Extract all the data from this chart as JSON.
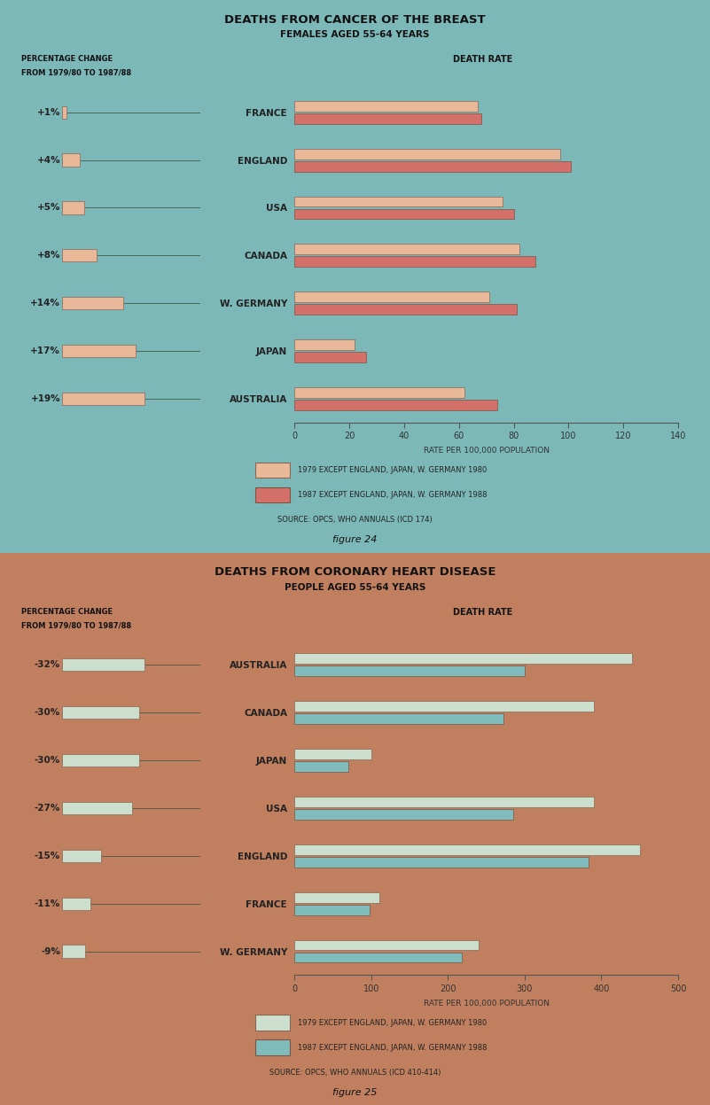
{
  "chart1": {
    "title": "DEATHS FROM CANCER OF THE BREAST",
    "subtitle": "FEMALES AGED 55-64 YEARS",
    "bg_color": "#7db8b8",
    "countries": [
      "FRANCE",
      "ENGLAND",
      "USA",
      "CANADA",
      "W. GERMANY",
      "JAPAN",
      "AUSTRALIA"
    ],
    "pct_changes": [
      "+1%",
      "+4%",
      "+5%",
      "+8%",
      "+14%",
      "+17%",
      "+19%"
    ],
    "pct_values": [
      1,
      4,
      5,
      8,
      14,
      17,
      19
    ],
    "val_1979": [
      67,
      97,
      76,
      82,
      71,
      22,
      62
    ],
    "val_1987": [
      68,
      101,
      80,
      88,
      81,
      26,
      74
    ],
    "color_1979": "#e8b898",
    "color_1987": "#d4706a",
    "xlim": [
      0,
      140
    ],
    "xticks": [
      0,
      20,
      40,
      60,
      80,
      100,
      120,
      140
    ],
    "xlabel": "RATE PER 100,000 POPULATION",
    "legend1": "1979 EXCEPT ENGLAND, JAPAN, W. GERMANY 1980",
    "legend2": "1987 EXCEPT ENGLAND, JAPAN, W. GERMANY 1988",
    "source": "SOURCE: OPCS, WHO ANNUALS (ICD 174)",
    "figure_label": "figure 24",
    "death_rate_label": "DEATH RATE",
    "pct_header1": "PERCENTAGE CHANGE",
    "pct_header2": "FROM 1979/80 TO 1987/88"
  },
  "chart2": {
    "title": "DEATHS FROM CORONARY HEART DISEASE",
    "subtitle": "PEOPLE AGED 55-64 YEARS",
    "bg_color": "#c08060",
    "countries": [
      "AUSTRALIA",
      "CANADA",
      "JAPAN",
      "USA",
      "ENGLAND",
      "FRANCE",
      "W. GERMANY"
    ],
    "pct_changes": [
      "-32%",
      "-30%",
      "-30%",
      "-27%",
      "-15%",
      "-11%",
      "-9%"
    ],
    "pct_values": [
      32,
      30,
      30,
      27,
      15,
      11,
      9
    ],
    "val_1979": [
      440,
      390,
      100,
      390,
      450,
      110,
      240
    ],
    "val_1987": [
      300,
      272,
      70,
      285,
      383,
      98,
      218
    ],
    "color_1979": "#ccdece",
    "color_1987": "#80bcbc",
    "xlim": [
      0,
      500
    ],
    "xticks": [
      0,
      100,
      200,
      300,
      400,
      500
    ],
    "xlabel": "RATE PER 100,000 POPULATION",
    "legend1": "1979 EXCEPT ENGLAND, JAPAN, W. GERMANY 1980",
    "legend2": "1987 EXCEPT ENGLAND, JAPAN, W. GERMANY 1988",
    "source": "SOURCE: OPCS, WHO ANNUALS (ICD 410-414)",
    "figure_label": "figure 25",
    "death_rate_label": "DEATH RATE",
    "pct_header1": "PERCENTAGE CHANGE",
    "pct_header2": "FROM 1979/80 TO 1987/88"
  }
}
